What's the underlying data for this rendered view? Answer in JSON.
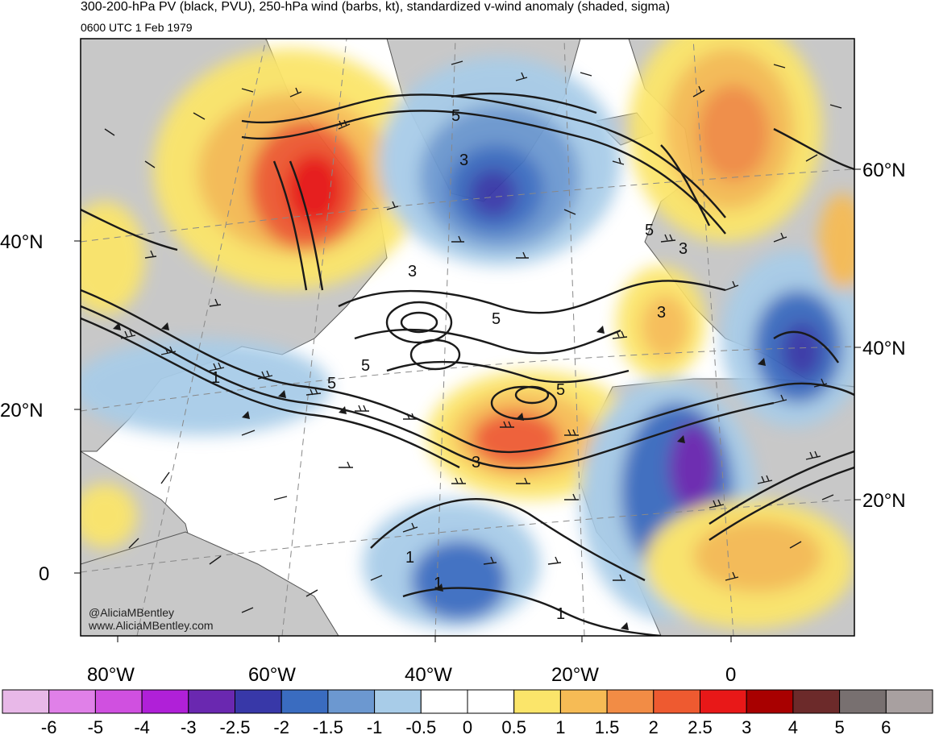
{
  "header": {
    "title": "300-200-hPa PV (black, PVU), 250-hPa wind (barbs, kt), standardized v-wind anomaly (shaded, sigma)",
    "subtitle": "0600 UTC 1 Feb 1979"
  },
  "map": {
    "lat_labels_left": [
      "40°N",
      "20°N",
      "0"
    ],
    "lat_labels_right": [
      "60°N",
      "40°N",
      "20°N"
    ],
    "lon_labels": [
      "80°W",
      "60°W",
      "40°W",
      "20°W",
      "0"
    ],
    "contour_labels": [
      "5",
      "3",
      "5",
      "3",
      "3",
      "5",
      "1",
      "5",
      "5",
      "3",
      "5",
      "1",
      "1",
      "1",
      "3"
    ],
    "credit_handle": "@AliciaMBentley",
    "credit_url": "www.AliciaMBentley.com"
  },
  "colorbar": {
    "labels": [
      "-6",
      "-5",
      "-4",
      "-3",
      "-2.5",
      "-2",
      "-1.5",
      "-1",
      "-0.5",
      "0",
      "0.5",
      "1",
      "1.5",
      "2",
      "2.5",
      "3",
      "4",
      "5",
      "6"
    ],
    "colors": [
      "#e8b8e8",
      "#e080e8",
      "#d050e0",
      "#b020d8",
      "#6a28b0",
      "#3838a8",
      "#3a6cc0",
      "#6c98d0",
      "#a8cce8",
      "#ffffff",
      "#ffffff",
      "#fbe56a",
      "#f6bb55",
      "#f28c45",
      "#ee5a30",
      "#e81818",
      "#a80000",
      "#6c2a2a",
      "#787070",
      "#a8a0a0"
    ]
  },
  "legend_colors": {
    "land": "#c8c8c8",
    "contour": "#1a1a1a",
    "barb": "#1a1a1a"
  }
}
